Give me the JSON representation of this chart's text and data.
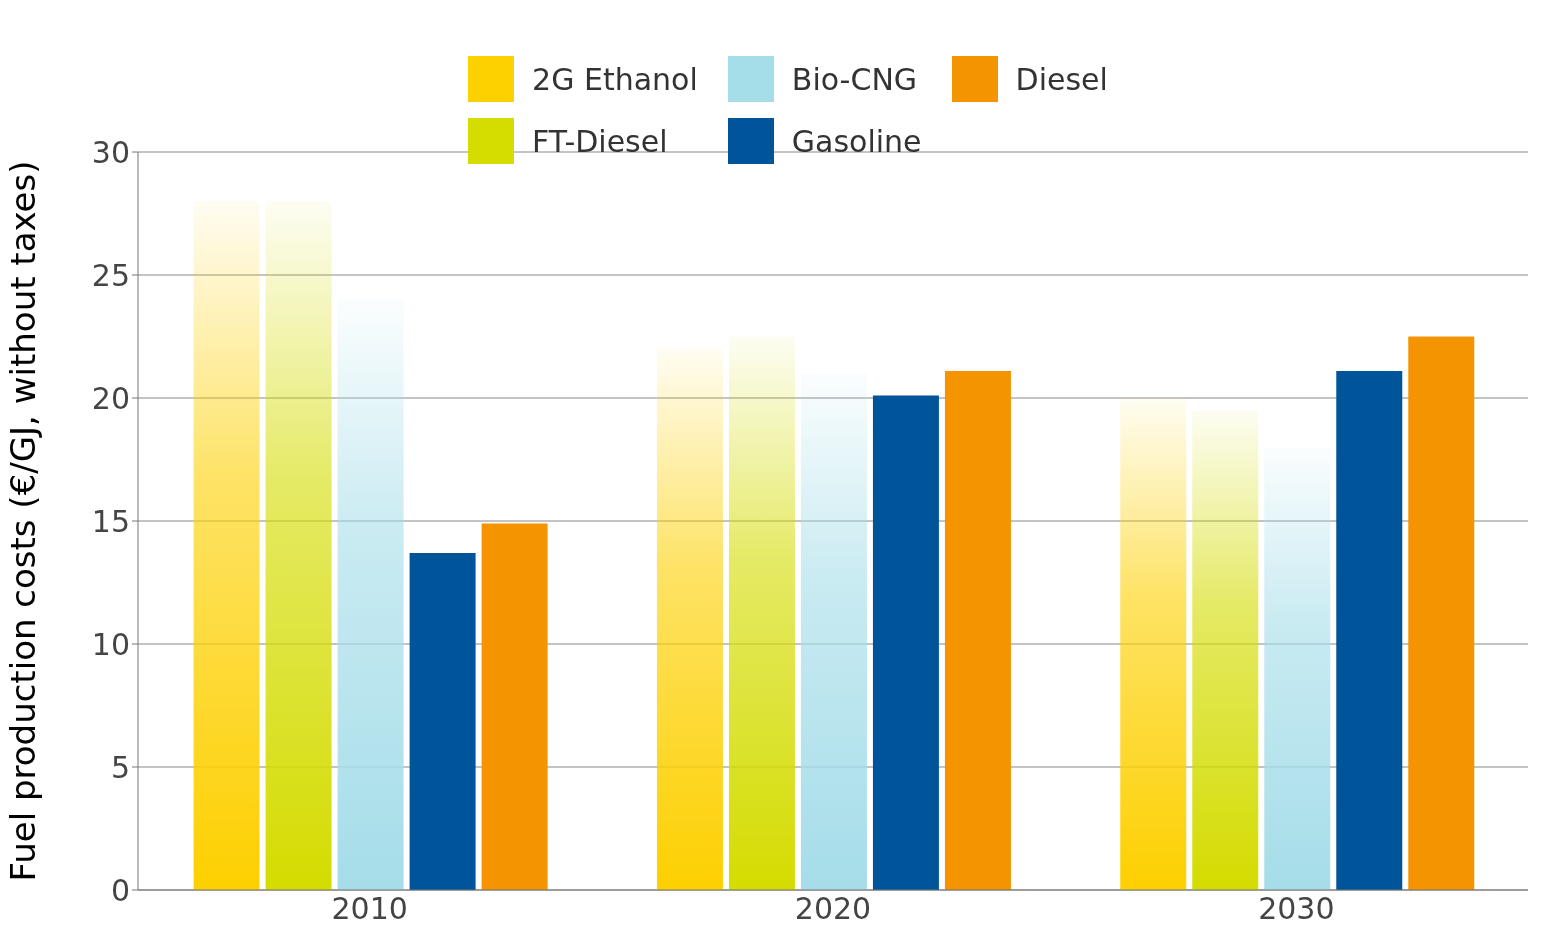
{
  "chart_data": {
    "type": "bar",
    "ylabel": "Fuel production costs (€/GJ, without taxes)",
    "categories": [
      "2010",
      "2020",
      "2030"
    ],
    "series": [
      {
        "name": "2G Ethanol",
        "color": "#fdd000",
        "values": [
          28,
          22,
          20
        ]
      },
      {
        "name": "FT-Diesel",
        "color": "#d4dc00",
        "values": [
          28,
          22.5,
          19.5
        ]
      },
      {
        "name": "Bio-CNG",
        "color": "#a5dde9",
        "values": [
          24,
          21,
          18
        ]
      },
      {
        "name": "Gasoline",
        "color": "#00559a",
        "values": [
          13.7,
          20.1,
          21.1
        ]
      },
      {
        "name": "Diesel",
        "color": "#f39400",
        "values": [
          14.9,
          21.1,
          22.5
        ]
      }
    ],
    "ylim": [
      0,
      30
    ],
    "yticks": [
      0,
      5,
      10,
      15,
      20,
      25,
      30
    ],
    "grid": "y",
    "legend": "top"
  }
}
